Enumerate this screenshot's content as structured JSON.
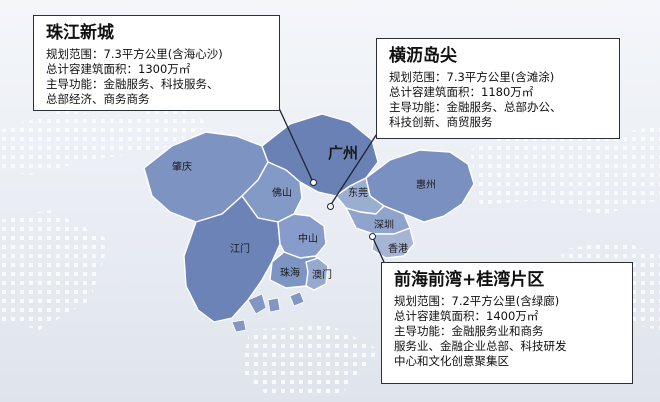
{
  "colors": {
    "map_fill_dark": "#6f86b8",
    "map_fill_mid": "#8ea2c8",
    "map_fill_light": "#a9b8d6",
    "card_border": "#2b2f38",
    "background": "#eef1f6"
  },
  "cities": {
    "guangzhou": "广州",
    "zhaoqing": "肇庆",
    "foshan": "佛山",
    "dongguan": "东莞",
    "huizhou": "惠州",
    "jiangmen": "江门",
    "zhongshan": "中山",
    "shenzhen": "深圳",
    "hongkong": "香港",
    "zhuhai": "珠海",
    "macau": "澳门"
  },
  "cards": {
    "zhujiang": {
      "title": "珠江新城",
      "lines": [
        "规划范围：7.3平方公里(含海心沙)",
        "总计容建筑面积：1300万㎡",
        "主导功能：金融服务、科技服务、",
        "总部经济、商务商务"
      ]
    },
    "hengli": {
      "title": "横沥岛尖",
      "lines": [
        "规划范围：7.3平方公里(含滩涂)",
        "总计容建筑面积：1180万㎡",
        "主导功能：金融服务、总部办公、",
        "科技创新、商贸服务"
      ]
    },
    "qianhai": {
      "title": "前海前湾+桂湾片区",
      "lines": [
        "规划范围：7.2平方公里(含绿廊)",
        "总计容建筑面积：1400万㎡",
        "主导功能：金融服务业和商务",
        "服务业、金融企业总部、科技研发",
        "中心和文化创意聚集区"
      ]
    }
  }
}
